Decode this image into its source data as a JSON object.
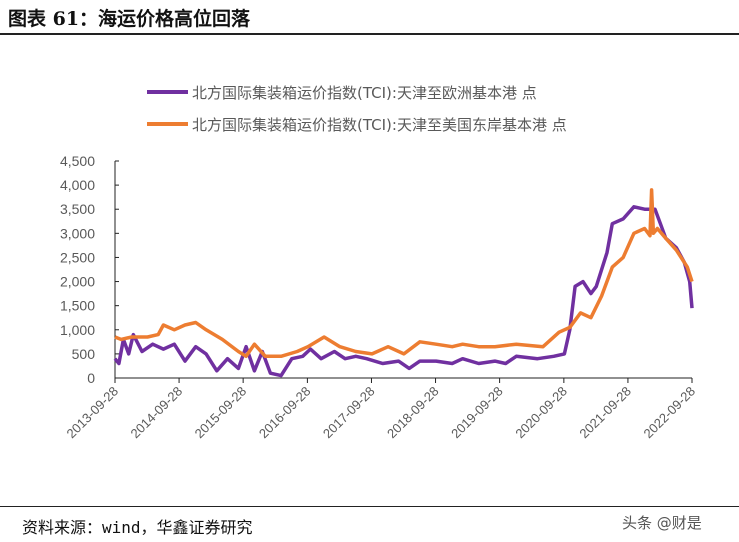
{
  "title": "图表 61：海运价格高位回落",
  "source": "资料来源：wind，华鑫证券研究",
  "watermark": "头条 @财是",
  "chart_data": {
    "type": "line",
    "title": "",
    "xlabel": "",
    "ylabel": "",
    "ylim": [
      0,
      4500
    ],
    "yticks": [
      "0",
      "500",
      "1,000",
      "1,500",
      "2,000",
      "2,500",
      "3,000",
      "3,500",
      "4,000",
      "4,500"
    ],
    "xticks": [
      "2013-09-28",
      "2014-09-28",
      "2015-09-28",
      "2016-09-28",
      "2017-09-28",
      "2018-09-28",
      "2019-09-28",
      "2020-09-28",
      "2021-09-28",
      "2022-09-28"
    ],
    "grid": false,
    "legend": "top",
    "series": [
      {
        "name": "北方国际集装箱运价指数(TCI):天津至欧洲基本港 点",
        "color": "#7030A0",
        "points": [
          [
            "2013-09-28",
            400
          ],
          [
            "2013-10-20",
            300
          ],
          [
            "2013-11-15",
            800
          ],
          [
            "2013-12-15",
            500
          ],
          [
            "2014-01-10",
            900
          ],
          [
            "2014-03-01",
            550
          ],
          [
            "2014-05-01",
            700
          ],
          [
            "2014-07-01",
            600
          ],
          [
            "2014-09-01",
            700
          ],
          [
            "2014-11-01",
            350
          ],
          [
            "2015-01-01",
            650
          ],
          [
            "2015-03-01",
            500
          ],
          [
            "2015-05-01",
            150
          ],
          [
            "2015-07-01",
            400
          ],
          [
            "2015-09-01",
            200
          ],
          [
            "2015-10-15",
            650
          ],
          [
            "2015-12-01",
            150
          ],
          [
            "2016-01-15",
            550
          ],
          [
            "2016-03-01",
            100
          ],
          [
            "2016-05-01",
            50
          ],
          [
            "2016-07-01",
            400
          ],
          [
            "2016-09-01",
            450
          ],
          [
            "2016-10-15",
            600
          ],
          [
            "2016-12-15",
            400
          ],
          [
            "2017-03-01",
            550
          ],
          [
            "2017-05-01",
            400
          ],
          [
            "2017-07-01",
            450
          ],
          [
            "2017-09-01",
            400
          ],
          [
            "2017-12-01",
            300
          ],
          [
            "2018-03-01",
            350
          ],
          [
            "2018-05-01",
            200
          ],
          [
            "2018-07-01",
            350
          ],
          [
            "2018-10-01",
            350
          ],
          [
            "2019-01-01",
            300
          ],
          [
            "2019-03-01",
            400
          ],
          [
            "2019-06-01",
            300
          ],
          [
            "2019-09-01",
            350
          ],
          [
            "2019-11-01",
            300
          ],
          [
            "2020-01-01",
            450
          ],
          [
            "2020-05-01",
            400
          ],
          [
            "2020-08-01",
            450
          ],
          [
            "2020-10-01",
            500
          ],
          [
            "2020-11-01",
            1000
          ],
          [
            "2020-12-01",
            1900
          ],
          [
            "2021-01-15",
            2000
          ],
          [
            "2021-03-01",
            1750
          ],
          [
            "2021-04-01",
            1900
          ],
          [
            "2021-06-01",
            2600
          ],
          [
            "2021-07-01",
            3200
          ],
          [
            "2021-09-01",
            3300
          ],
          [
            "2021-11-01",
            3550
          ],
          [
            "2022-01-01",
            3500
          ],
          [
            "2022-03-01",
            3500
          ],
          [
            "2022-04-01",
            3200
          ],
          [
            "2022-05-01",
            2900
          ],
          [
            "2022-07-01",
            2700
          ],
          [
            "2022-08-15",
            2400
          ],
          [
            "2022-09-15",
            2000
          ],
          [
            "2022-09-28",
            1450
          ]
        ]
      },
      {
        "name": "北方国际集装箱运价指数(TCI):天津至美国东岸基本港 点",
        "color": "#ED7D31",
        "points": [
          [
            "2013-09-28",
            850
          ],
          [
            "2013-11-01",
            800
          ],
          [
            "2014-01-01",
            850
          ],
          [
            "2014-04-01",
            850
          ],
          [
            "2014-06-01",
            900
          ],
          [
            "2014-07-01",
            1100
          ],
          [
            "2014-09-01",
            1000
          ],
          [
            "2014-11-01",
            1100
          ],
          [
            "2015-01-01",
            1150
          ],
          [
            "2015-03-01",
            1000
          ],
          [
            "2015-06-01",
            800
          ],
          [
            "2015-09-01",
            550
          ],
          [
            "2015-10-15",
            450
          ],
          [
            "2015-12-01",
            700
          ],
          [
            "2016-02-01",
            450
          ],
          [
            "2016-05-01",
            450
          ],
          [
            "2016-08-01",
            550
          ],
          [
            "2016-10-01",
            650
          ],
          [
            "2017-01-01",
            850
          ],
          [
            "2017-04-01",
            650
          ],
          [
            "2017-07-01",
            550
          ],
          [
            "2017-10-01",
            500
          ],
          [
            "2018-01-01",
            650
          ],
          [
            "2018-04-01",
            500
          ],
          [
            "2018-07-01",
            750
          ],
          [
            "2018-10-01",
            700
          ],
          [
            "2019-01-01",
            650
          ],
          [
            "2019-03-01",
            700
          ],
          [
            "2019-06-01",
            650
          ],
          [
            "2019-09-01",
            650
          ],
          [
            "2020-01-01",
            700
          ],
          [
            "2020-06-01",
            650
          ],
          [
            "2020-09-01",
            950
          ],
          [
            "2020-11-01",
            1050
          ],
          [
            "2021-01-01",
            1350
          ],
          [
            "2021-03-01",
            1250
          ],
          [
            "2021-05-01",
            1700
          ],
          [
            "2021-07-01",
            2300
          ],
          [
            "2021-09-01",
            2500
          ],
          [
            "2021-11-01",
            3000
          ],
          [
            "2022-01-01",
            3100
          ],
          [
            "2022-02-01",
            2950
          ],
          [
            "2022-02-10",
            3900
          ],
          [
            "2022-02-20",
            3000
          ],
          [
            "2022-03-15",
            3100
          ],
          [
            "2022-05-01",
            2900
          ],
          [
            "2022-07-01",
            2650
          ],
          [
            "2022-09-01",
            2300
          ],
          [
            "2022-09-28",
            2000
          ]
        ]
      }
    ]
  }
}
